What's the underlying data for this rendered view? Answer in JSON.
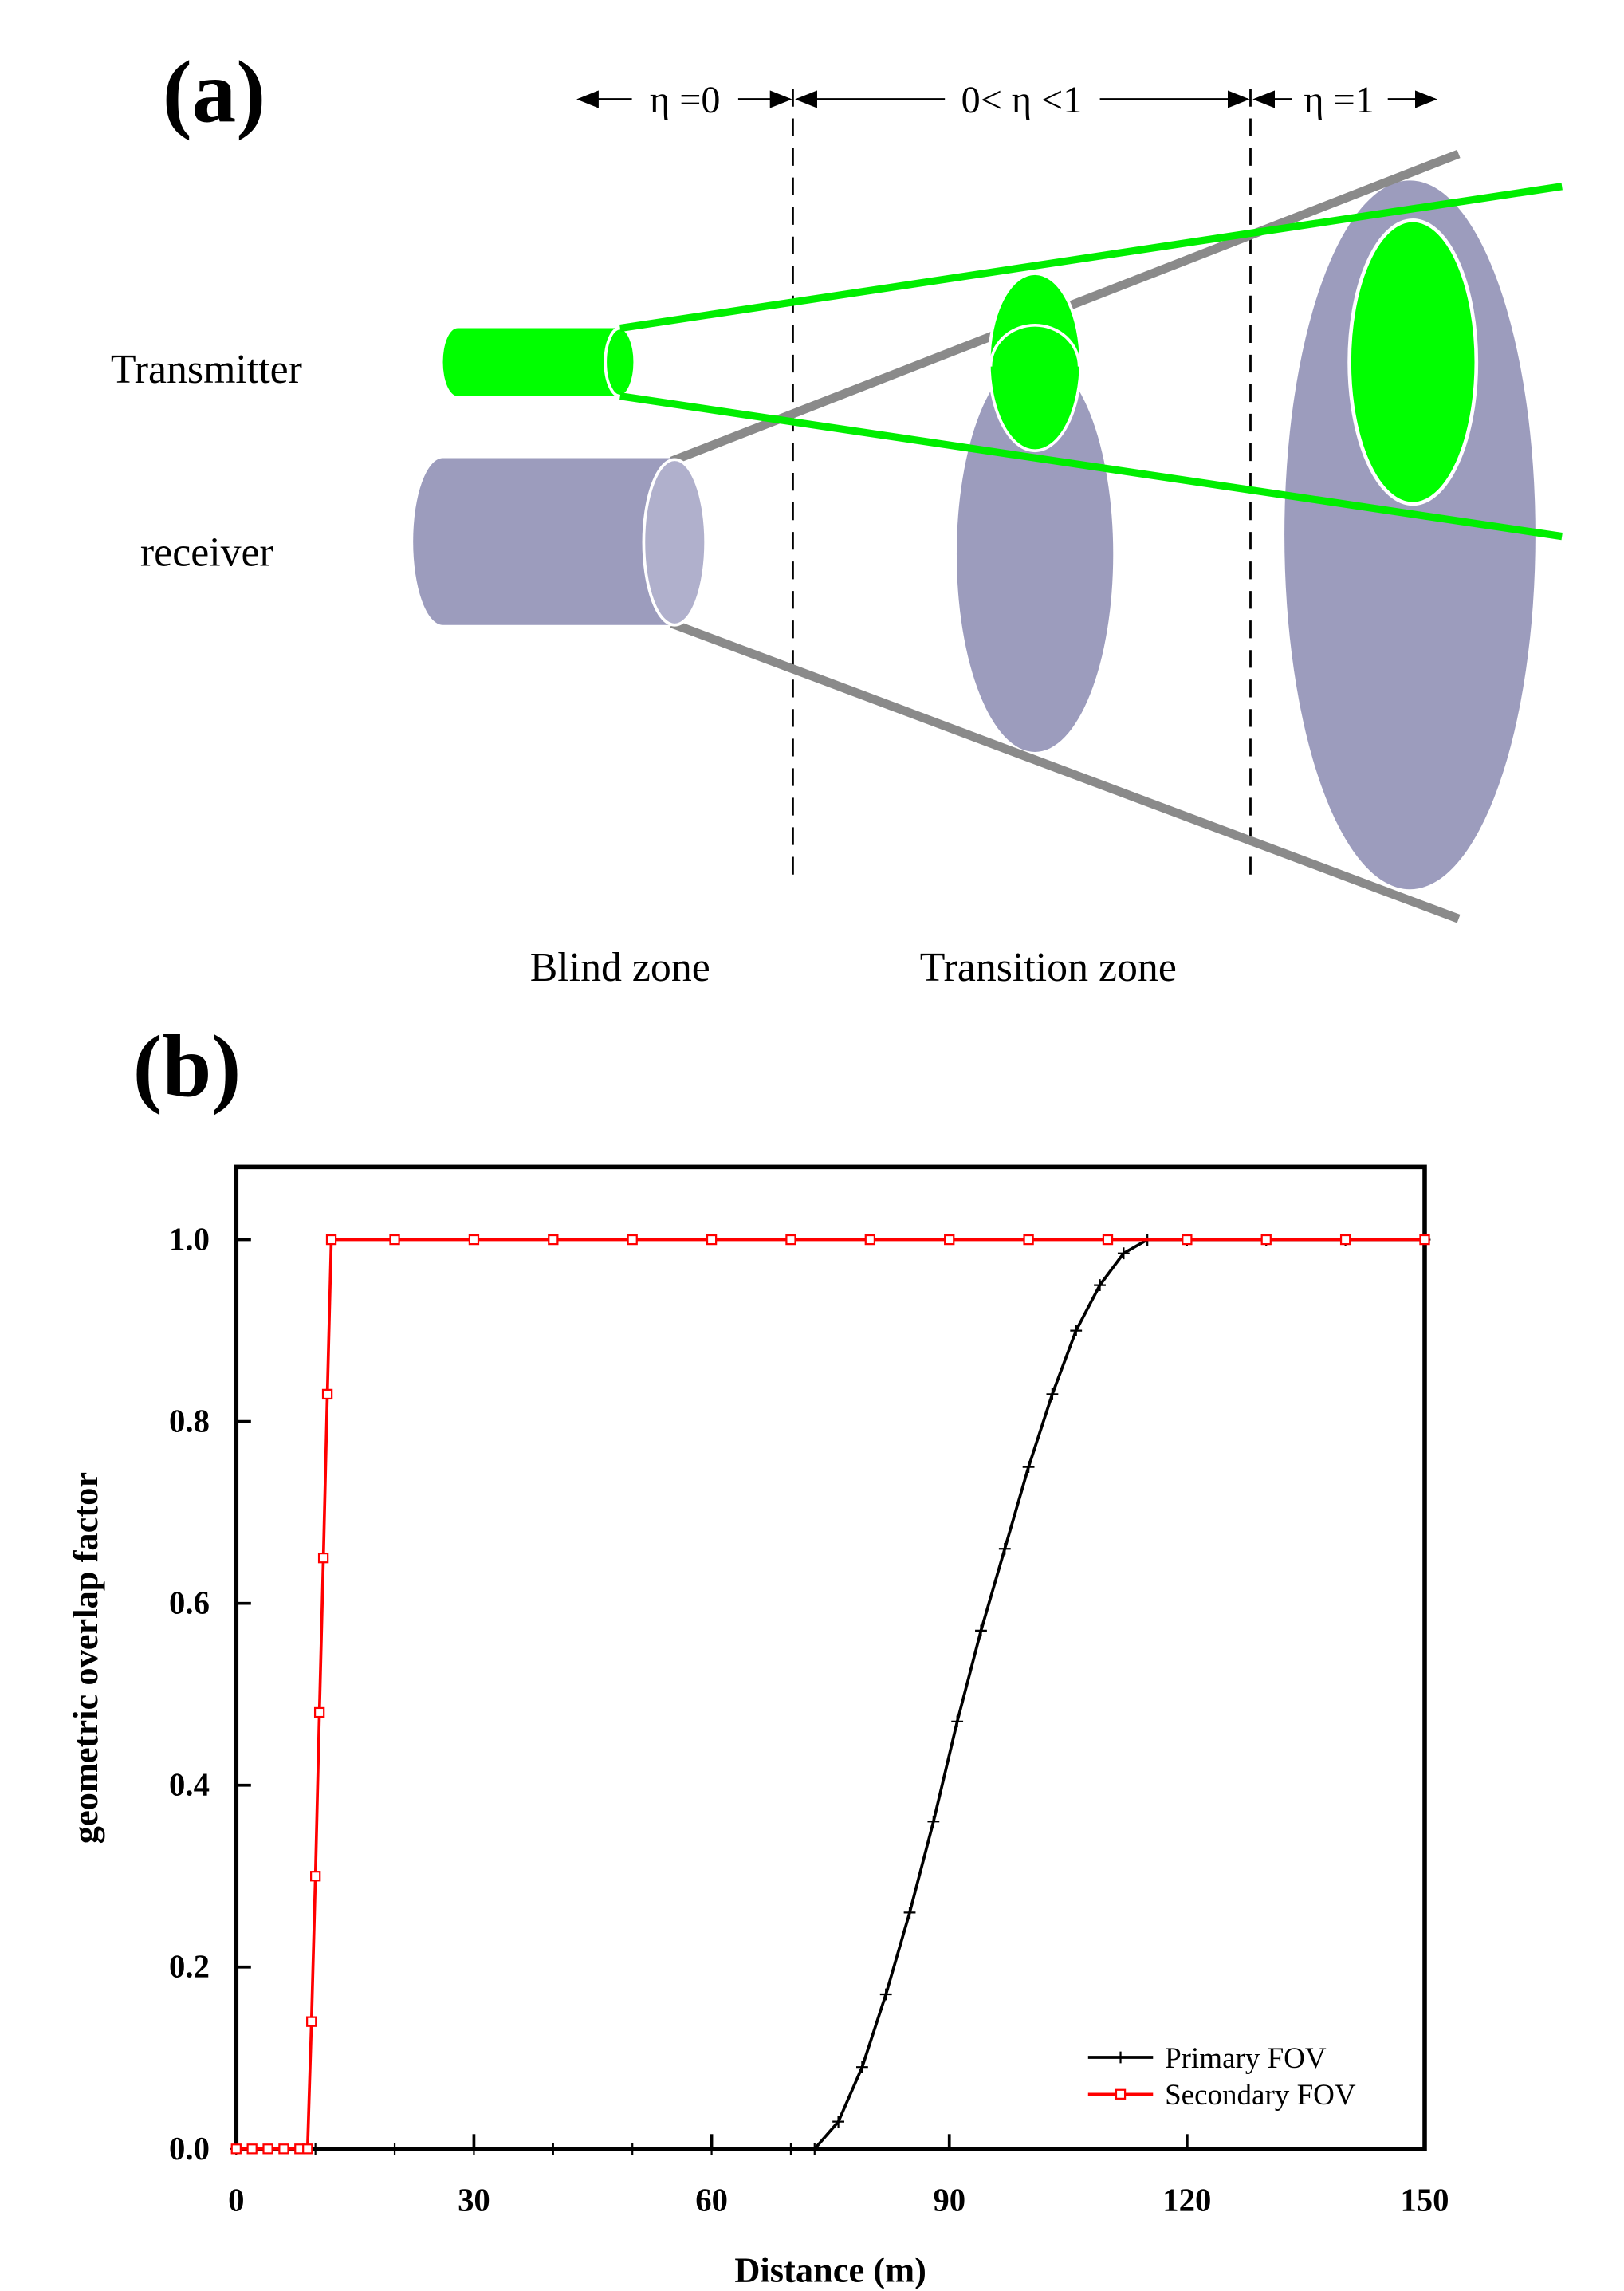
{
  "diagram": {
    "panel_label": "(a)",
    "zones": [
      "η =0",
      "0< η <1",
      "η =1"
    ],
    "transmitter": "Transmitter",
    "receiver": "receiver",
    "blind_zone": "Blind zone",
    "transition_zone": "Transition zone"
  },
  "chart_data": {
    "type": "line",
    "panel_label": "(b)",
    "xlabel": "Distance (m)",
    "ylabel": "geometric overlap factor",
    "xlim": [
      0,
      150
    ],
    "ylim": [
      0,
      1.08
    ],
    "xticks": [
      0,
      30,
      60,
      90,
      120,
      150
    ],
    "yticks": [
      {
        "value": 0,
        "label": "0.0"
      },
      0.2,
      0.4,
      0.6,
      0.8,
      {
        "value": 1,
        "label": "1.0"
      }
    ],
    "legend": "lower right",
    "series": [
      {
        "name": "Primary FOV",
        "color": "#000000",
        "marker": "plus",
        "x": [
          0,
          10,
          20,
          30,
          40,
          50,
          60,
          70,
          73,
          76,
          79,
          82,
          85,
          88,
          91,
          94,
          97,
          100,
          103,
          106,
          109,
          112,
          115,
          120,
          130,
          140,
          150
        ],
        "values": [
          0,
          0,
          0,
          0,
          0,
          0,
          0,
          0,
          0,
          0.03,
          0.09,
          0.17,
          0.26,
          0.36,
          0.47,
          0.57,
          0.66,
          0.75,
          0.83,
          0.9,
          0.95,
          0.985,
          1,
          1,
          1,
          1,
          1
        ]
      },
      {
        "name": "Secondary FOV",
        "color": "#ff0000",
        "marker": "square",
        "x": [
          0,
          2,
          4,
          6,
          8,
          9,
          9.5,
          10,
          10.5,
          11,
          11.5,
          12,
          20,
          30,
          40,
          50,
          60,
          70,
          80,
          90,
          100,
          110,
          120,
          130,
          140,
          150
        ],
        "values": [
          0,
          0,
          0,
          0,
          0,
          0,
          0.14,
          0.3,
          0.48,
          0.65,
          0.83,
          1,
          1,
          1,
          1,
          1,
          1,
          1,
          1,
          1,
          1,
          1,
          1,
          1,
          1,
          1
        ]
      }
    ]
  }
}
